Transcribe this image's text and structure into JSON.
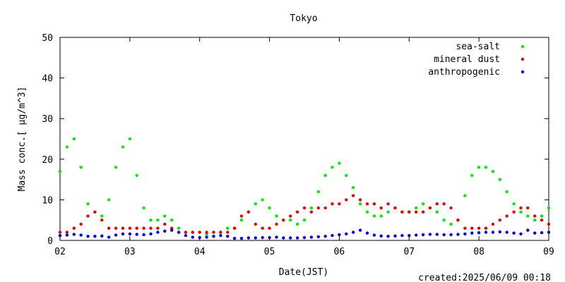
{
  "chart_data": {
    "type": "scatter",
    "title": "Tokyo",
    "xlabel": "Date(JST)",
    "ylabel": "Mass conc.[ μg/m^3]",
    "xlim": [
      2,
      9
    ],
    "ylim": [
      0,
      50
    ],
    "xticks": [
      "02",
      "03",
      "04",
      "05",
      "06",
      "07",
      "08",
      "09"
    ],
    "yticks": [
      0,
      10,
      20,
      30,
      40,
      50
    ],
    "legend_position": "top-right",
    "grid": false,
    "footer": "created:2025/06/09 00:18",
    "series": [
      {
        "name": "sea-salt",
        "color": "#00ee00",
        "x": [
          2.0,
          2.1,
          2.2,
          2.3,
          2.4,
          2.5,
          2.6,
          2.7,
          2.8,
          2.9,
          3.0,
          3.1,
          3.2,
          3.3,
          3.4,
          3.5,
          3.6,
          3.7,
          3.8,
          3.9,
          4.0,
          4.1,
          4.2,
          4.3,
          4.4,
          4.5,
          4.6,
          4.7,
          4.8,
          4.9,
          5.0,
          5.1,
          5.2,
          5.3,
          5.4,
          5.5,
          5.6,
          5.7,
          5.8,
          5.9,
          6.0,
          6.1,
          6.2,
          6.3,
          6.4,
          6.5,
          6.6,
          6.7,
          6.8,
          6.9,
          7.0,
          7.1,
          7.2,
          7.3,
          7.4,
          7.5,
          7.6,
          7.7,
          7.8,
          7.9,
          8.0,
          8.1,
          8.2,
          8.3,
          8.4,
          8.5,
          8.6,
          8.7,
          8.8,
          8.9,
          9.0
        ],
        "y": [
          17,
          23,
          25,
          18,
          9,
          7,
          6,
          10,
          18,
          23,
          25,
          16,
          8,
          5,
          5,
          6,
          5,
          3,
          2,
          2,
          2,
          1.5,
          2,
          2,
          3,
          3,
          5,
          7,
          9,
          10,
          8,
          6,
          5,
          5,
          4,
          5,
          8,
          12,
          16,
          18,
          19,
          16,
          13,
          9,
          7,
          6,
          6,
          7,
          8,
          7,
          7,
          8,
          9,
          8,
          7,
          5,
          4,
          5,
          11,
          16,
          18,
          18,
          17,
          15,
          12,
          9,
          7,
          6,
          5,
          6,
          8
        ]
      },
      {
        "name": "mineral dust",
        "color": "#ee0000",
        "x": [
          2.0,
          2.1,
          2.2,
          2.3,
          2.4,
          2.5,
          2.6,
          2.7,
          2.8,
          2.9,
          3.0,
          3.1,
          3.2,
          3.3,
          3.4,
          3.5,
          3.6,
          3.7,
          3.8,
          3.9,
          4.0,
          4.1,
          4.2,
          4.3,
          4.4,
          4.5,
          4.6,
          4.7,
          4.8,
          4.9,
          5.0,
          5.1,
          5.2,
          5.3,
          5.4,
          5.5,
          5.6,
          5.7,
          5.8,
          5.9,
          6.0,
          6.1,
          6.2,
          6.3,
          6.4,
          6.5,
          6.6,
          6.7,
          6.8,
          6.9,
          7.0,
          7.1,
          7.2,
          7.3,
          7.4,
          7.5,
          7.6,
          7.7,
          7.8,
          7.9,
          8.0,
          8.1,
          8.2,
          8.3,
          8.4,
          8.5,
          8.6,
          8.7,
          8.8,
          8.9,
          9.0
        ],
        "y": [
          2,
          2,
          3,
          4,
          6,
          7,
          5,
          3,
          3,
          3,
          3,
          3,
          3,
          3,
          3,
          4,
          3,
          2,
          2,
          2,
          2,
          2,
          2,
          2,
          2,
          3,
          6,
          7,
          4,
          3,
          3,
          4,
          5,
          6,
          7,
          8,
          7,
          8,
          8,
          9,
          9,
          10,
          11,
          10,
          9,
          9,
          8,
          9,
          8,
          7,
          7,
          7,
          7,
          8,
          9,
          9,
          8,
          5,
          3,
          3,
          3,
          3,
          4,
          5,
          6,
          7,
          8,
          8,
          6,
          5,
          4
        ]
      },
      {
        "name": "anthropogenic",
        "color": "#0000ee",
        "x": [
          2.0,
          2.1,
          2.2,
          2.3,
          2.4,
          2.5,
          2.6,
          2.7,
          2.8,
          2.9,
          3.0,
          3.1,
          3.2,
          3.3,
          3.4,
          3.5,
          3.6,
          3.7,
          3.8,
          3.9,
          4.0,
          4.1,
          4.2,
          4.3,
          4.4,
          4.5,
          4.6,
          4.7,
          4.8,
          4.9,
          5.0,
          5.1,
          5.2,
          5.3,
          5.4,
          5.5,
          5.6,
          5.7,
          5.8,
          5.9,
          6.0,
          6.1,
          6.2,
          6.3,
          6.4,
          6.5,
          6.6,
          6.7,
          6.8,
          6.9,
          7.0,
          7.1,
          7.2,
          7.3,
          7.4,
          7.5,
          7.6,
          7.7,
          7.8,
          7.9,
          8.0,
          8.1,
          8.2,
          8.3,
          8.4,
          8.5,
          8.6,
          8.7,
          8.8,
          8.9,
          9.0
        ],
        "y": [
          1.2,
          1.3,
          1.5,
          1.3,
          1.0,
          1.0,
          1.1,
          0.8,
          1.3,
          1.6,
          1.6,
          1.5,
          1.4,
          1.6,
          2.0,
          2.3,
          2.5,
          2.0,
          1.2,
          0.8,
          0.7,
          0.8,
          1.0,
          1.2,
          1.0,
          0.5,
          0.5,
          0.6,
          0.6,
          0.7,
          0.7,
          0.8,
          0.6,
          0.6,
          0.6,
          0.7,
          0.8,
          0.9,
          1.0,
          1.2,
          1.4,
          1.6,
          2.0,
          2.5,
          1.8,
          1.3,
          1.1,
          1.0,
          1.1,
          1.2,
          1.2,
          1.3,
          1.4,
          1.5,
          1.5,
          1.4,
          1.4,
          1.5,
          1.6,
          1.8,
          1.9,
          2.0,
          2.0,
          2.1,
          2.0,
          1.8,
          1.6,
          2.5,
          1.8,
          1.9,
          2.0
        ]
      }
    ]
  }
}
